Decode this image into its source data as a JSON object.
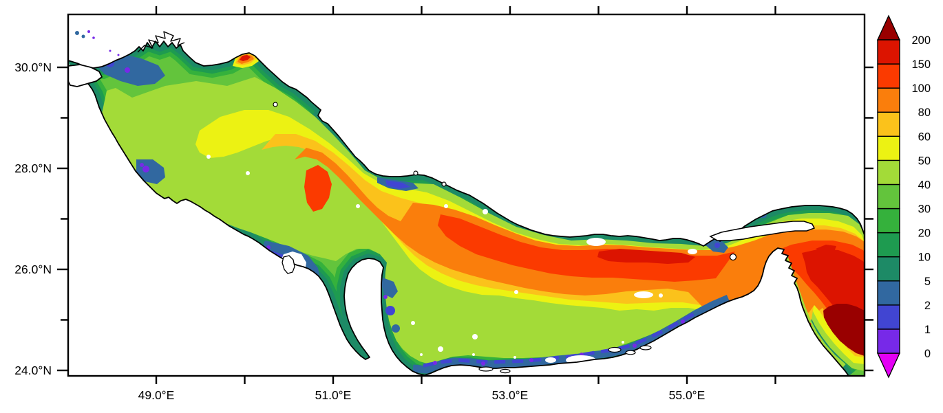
{
  "figure": {
    "background": "#FFFFFF",
    "frame_color": "#000000"
  },
  "chart_data": {
    "type": "heatmap",
    "title": "",
    "description": "Filled-contour geographic map of the Persian Gulf / Strait of Hormuz region with a nonlinear color scale (deepest dark-red basin southeast of the strait, orange-red axial trough along the Iranian side, green shallow margins, blue/violet very shallow coastal strips, white land and no-data patches)",
    "x_axis": {
      "unit": "°E",
      "range": [
        48.0,
        57.0
      ],
      "major_ticks": [
        {
          "value": 49,
          "label": "49.0°E"
        },
        {
          "value": 51,
          "label": "51.0°E"
        },
        {
          "value": 53,
          "label": "53.0°E"
        },
        {
          "value": 55,
          "label": "55.0°E"
        }
      ],
      "minor_ticks": [
        50,
        52,
        54,
        56
      ]
    },
    "y_axis": {
      "unit": "°N",
      "range": [
        23.9,
        31.05
      ],
      "major_ticks": [
        {
          "value": 30,
          "label": "30.0°N"
        },
        {
          "value": 28,
          "label": "28.0°N"
        },
        {
          "value": 26,
          "label": "26.0°N"
        },
        {
          "value": 24,
          "label": "24.0°N"
        }
      ],
      "minor_ticks": [
        25,
        27,
        29
      ]
    },
    "colorbar": {
      "orientation": "vertical",
      "levels": [
        0,
        1,
        2,
        5,
        10,
        20,
        30,
        40,
        50,
        60,
        80,
        100,
        150,
        200
      ],
      "labels": [
        "0",
        "1",
        "2",
        "5",
        "10",
        "20",
        "30",
        "40",
        "50",
        "60",
        "80",
        "100",
        "150",
        "200"
      ],
      "box_colors": [
        "#7729E8",
        "#4145D2",
        "#3168A0",
        "#1D8A66",
        "#1E9B50",
        "#35B13C",
        "#63C43C",
        "#A3DB38",
        "#ECF213",
        "#FBC21B",
        "#FA7E0C",
        "#FB3A00",
        "#DC1400"
      ],
      "under_arrow_color": "#E400F5",
      "over_arrow_color": "#990000"
    },
    "palette": {
      "under_0": "#E400F5",
      "band_0_1": "#7729E8",
      "band_1_2": "#4145D2",
      "band_2_5": "#3168A0",
      "band_5_10": "#1D8A66",
      "band_10_20": "#1E9B50",
      "band_20_30": "#35B13C",
      "band_30_40": "#63C43C",
      "band_40_50": "#A3DB38",
      "band_50_60": "#ECF213",
      "band_60_80": "#FBC21B",
      "band_80_100": "#FA7E0C",
      "band_100_150": "#FB3A00",
      "band_150_200": "#DC1400",
      "over_200": "#990000",
      "land": "#FFFFFF",
      "coastline": "#000000"
    }
  }
}
